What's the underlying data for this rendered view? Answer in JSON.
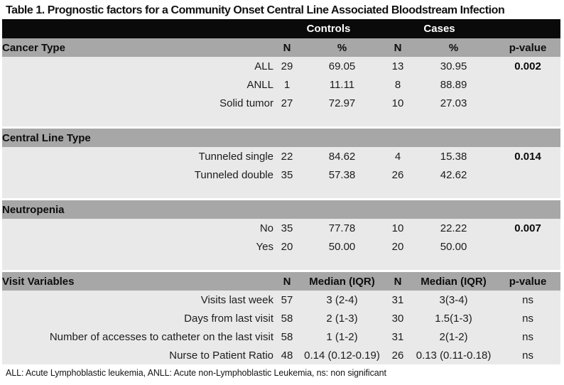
{
  "title": "Table 1. Prognostic factors for a Community Onset Central Line Associated Bloodstream Infection",
  "group_header": {
    "controls": "Controls",
    "cases": "Cases"
  },
  "sections": [
    {
      "name": "Cancer Type",
      "columns": [
        "N",
        "%",
        "N",
        "%",
        "p-value"
      ],
      "rows": [
        {
          "cells": [
            "ALL",
            "29",
            "69.05",
            "13",
            "30.95",
            "0.002"
          ],
          "p_bold": true
        },
        {
          "cells": [
            "ANLL",
            "1",
            "11.11",
            "8",
            "88.89",
            ""
          ],
          "p_bold": false
        },
        {
          "cells": [
            "Solid tumor",
            "27",
            "72.97",
            "10",
            "27.03",
            ""
          ],
          "p_bold": false
        }
      ]
    },
    {
      "name": "Central Line Type",
      "columns": null,
      "rows": [
        {
          "cells": [
            "Tunneled single",
            "22",
            "84.62",
            "4",
            "15.38",
            "0.014"
          ],
          "p_bold": true
        },
        {
          "cells": [
            "Tunneled double",
            "35",
            "57.38",
            "26",
            "42.62",
            ""
          ],
          "p_bold": false
        }
      ]
    },
    {
      "name": "Neutropenia",
      "columns": null,
      "rows": [
        {
          "cells": [
            "No",
            "35",
            "77.78",
            "10",
            "22.22",
            "0.007"
          ],
          "p_bold": true
        },
        {
          "cells": [
            "Yes",
            "20",
            "50.00",
            "20",
            "50.00",
            ""
          ],
          "p_bold": false
        }
      ]
    },
    {
      "name": "Visit Variables",
      "columns": [
        "N",
        "Median (IQR)",
        "N",
        "Median (IQR)",
        "p-value"
      ],
      "rows": [
        {
          "cells": [
            "Visits last week",
            "57",
            "3 (2-4)",
            "31",
            "3(3-4)",
            "ns"
          ],
          "p_bold": false
        },
        {
          "cells": [
            "Days from last visit",
            "58",
            "2 (1-3)",
            "30",
            "1.5(1-3)",
            "ns"
          ],
          "p_bold": false
        },
        {
          "cells": [
            "Number of accesses to catheter on the last visit",
            "58",
            "1 (1-2)",
            "31",
            "2(1-2)",
            "ns"
          ],
          "p_bold": false
        },
        {
          "cells": [
            "Nurse to Patient Ratio",
            "48",
            "0.14 (0.12-0.19)",
            "26",
            "0.13 (0.11-0.18)",
            "ns"
          ],
          "p_bold": false
        }
      ]
    }
  ],
  "footnote": "ALL: Acute Lymphoblastic leukemia, ANLL: Acute non-Lymphoblastic Leukemia, ns: non significant",
  "colors": {
    "group_header_bg": "#0a0a0a",
    "group_header_text": "#ffffff",
    "section_band_bg": "#a7a7a7",
    "data_row_bg": "#e9e9e9",
    "page_bg": "#ffffff",
    "text": "#1c1c1c"
  }
}
